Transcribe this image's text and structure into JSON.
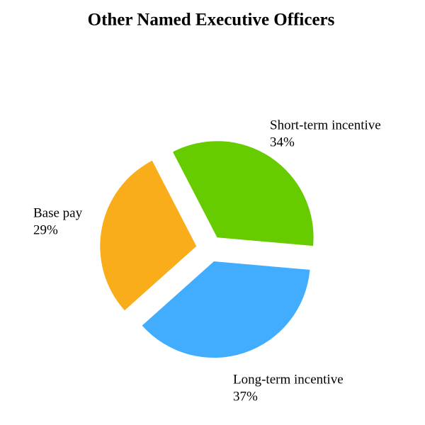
{
  "chart_data": {
    "type": "pie",
    "title": "Other Named Executive Officers",
    "categories": [
      "Short-term incentive",
      "Long-term incentive",
      "Base pay"
    ],
    "values": [
      34,
      37,
      29
    ],
    "value_labels": [
      "34%",
      "37%",
      "29%"
    ],
    "colors": [
      "#66cc00",
      "#42adff",
      "#f9ad1a"
    ]
  }
}
